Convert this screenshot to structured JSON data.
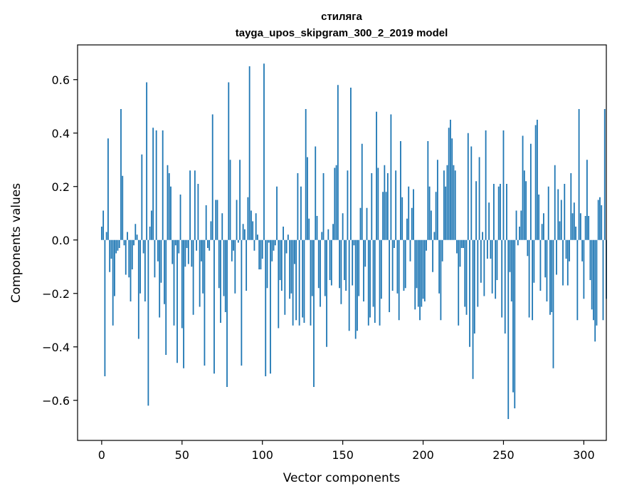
{
  "chart_data": {
    "type": "bar",
    "title_line1": "стиляга",
    "title_line2": "tayga_upos_skipgram_300_2_2019 model",
    "xlabel": "Vector components",
    "ylabel": "Components values",
    "xlim": [
      -15,
      314
    ],
    "ylim": [
      -0.75,
      0.73
    ],
    "xticks": [
      0,
      50,
      100,
      150,
      200,
      250,
      300
    ],
    "yticks": [
      -0.6,
      -0.4,
      -0.2,
      0.0,
      0.2,
      0.4,
      0.6
    ],
    "ytick_labels": [
      "−0.6",
      "−0.4",
      "−0.2",
      "0.0",
      "0.2",
      "0.4",
      "0.6"
    ],
    "bar_color": "#1f77b4",
    "values": [
      0.05,
      0.11,
      -0.51,
      0.03,
      0.38,
      -0.12,
      -0.07,
      -0.32,
      -0.21,
      -0.05,
      -0.04,
      -0.03,
      0.49,
      0.24,
      -0.02,
      -0.13,
      0.03,
      -0.14,
      -0.23,
      -0.11,
      -0.02,
      0.06,
      0.02,
      -0.37,
      -0.2,
      0.32,
      -0.05,
      -0.23,
      0.59,
      -0.62,
      0.05,
      0.11,
      0.42,
      -0.14,
      0.41,
      -0.08,
      -0.29,
      -0.16,
      0.41,
      -0.24,
      -0.43,
      0.28,
      0.25,
      0.2,
      -0.09,
      -0.32,
      -0.02,
      -0.46,
      -0.05,
      0.17,
      -0.33,
      -0.48,
      -0.1,
      -0.03,
      -0.09,
      0.26,
      -0.1,
      -0.28,
      0.26,
      -0.04,
      0.21,
      -0.25,
      -0.08,
      -0.2,
      -0.47,
      0.13,
      -0.03,
      -0.04,
      0.07,
      0.47,
      -0.5,
      0.15,
      0.15,
      -0.18,
      -0.31,
      0.1,
      -0.21,
      -0.27,
      -0.55,
      0.59,
      0.3,
      -0.08,
      -0.04,
      -0.2,
      0.15,
      -0.01,
      0.3,
      -0.47,
      0.06,
      0.04,
      -0.19,
      0.16,
      0.65,
      0.11,
      0.07,
      -0.04,
      0.1,
      0.02,
      -0.11,
      -0.11,
      -0.07,
      0.66,
      -0.51,
      -0.18,
      -0.01,
      -0.5,
      -0.08,
      -0.04,
      -0.02,
      0.2,
      -0.33,
      -0.15,
      -0.19,
      0.05,
      -0.28,
      -0.05,
      0.02,
      -0.22,
      -0.2,
      -0.32,
      -0.09,
      -0.3,
      0.25,
      -0.32,
      0.2,
      -0.29,
      -0.31,
      0.49,
      0.31,
      0.08,
      -0.32,
      -0.21,
      -0.55,
      0.35,
      0.09,
      -0.18,
      -0.25,
      0.03,
      0.25,
      -0.21,
      -0.4,
      0.04,
      -0.15,
      -0.17,
      0.06,
      0.27,
      0.28,
      0.58,
      -0.18,
      -0.24,
      0.1,
      -0.15,
      -0.19,
      0.26,
      -0.34,
      0.57,
      -0.17,
      -0.02,
      -0.37,
      -0.34,
      -0.21,
      0.12,
      0.36,
      -0.23,
      -0.1,
      0.12,
      -0.32,
      -0.29,
      0.25,
      -0.25,
      -0.31,
      0.48,
      0.27,
      -0.32,
      -0.22,
      0.18,
      0.28,
      0.18,
      0.25,
      -0.27,
      0.47,
      -0.19,
      -0.03,
      0.26,
      -0.2,
      -0.3,
      0.37,
      0.16,
      -0.19,
      -0.18,
      0.08,
      0.2,
      -0.08,
      0.12,
      0.19,
      -0.26,
      -0.18,
      -0.25,
      -0.3,
      -0.25,
      -0.22,
      -0.23,
      -0.04,
      0.37,
      0.2,
      0.11,
      -0.12,
      0.03,
      0.18,
      0.3,
      -0.2,
      -0.3,
      -0.08,
      0.26,
      0.2,
      0.28,
      0.42,
      0.45,
      0.38,
      0.28,
      0.26,
      -0.05,
      -0.32,
      -0.1,
      -0.03,
      -0.03,
      -0.25,
      -0.28,
      0.4,
      -0.4,
      0.35,
      -0.52,
      -0.35,
      0.22,
      -0.25,
      0.31,
      -0.16,
      0.03,
      -0.21,
      0.41,
      -0.07,
      0.14,
      -0.07,
      -0.2,
      0.21,
      -0.22,
      -0.15,
      0.2,
      0.21,
      -0.29,
      0.41,
      -0.35,
      0.21,
      -0.67,
      -0.12,
      -0.23,
      -0.57,
      -0.63,
      0.11,
      -0.02,
      0.05,
      0.11,
      0.39,
      0.26,
      0.22,
      -0.06,
      -0.29,
      0.36,
      -0.3,
      -0.16,
      0.43,
      0.45,
      0.17,
      -0.19,
      0.06,
      0.1,
      -0.14,
      -0.23,
      0.2,
      -0.28,
      -0.27,
      -0.48,
      0.28,
      -0.13,
      0.19,
      0.07,
      0.15,
      -0.17,
      0.21,
      -0.07,
      -0.17,
      -0.08,
      0.25,
      0.1,
      0.14,
      0.05,
      -0.3,
      0.49,
      0.1,
      -0.08,
      -0.22,
      0.09,
      0.3,
      0.09,
      -0.15,
      -0.26,
      -0.3,
      -0.38,
      -0.32,
      0.15,
      0.16,
      0.13,
      -0.3,
      0.49,
      -0.22
    ]
  }
}
